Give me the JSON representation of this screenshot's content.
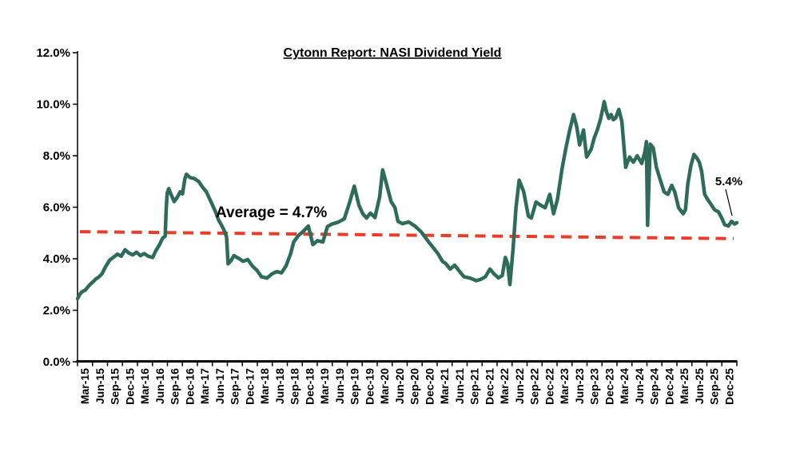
{
  "page": {
    "background": "#ffffff"
  },
  "chart_data": {
    "type": "line",
    "title": "Cytonn Report: NASI Dividend Yield",
    "xlabel": "",
    "ylabel": "",
    "unit": "percent",
    "ylim": [
      0,
      12
    ],
    "y_tick_values": [
      0,
      2,
      4,
      6,
      8,
      10,
      12
    ],
    "y_tick_labels": [
      "0.0%",
      "2.0%",
      "4.0%",
      "6.0%",
      "8.0%",
      "10.0%",
      "12.0%"
    ],
    "x_tick_labels": [
      "Mar-15",
      "Jun-15",
      "Sep-15",
      "Dec-15",
      "Mar-16",
      "Jun-16",
      "Sep-16",
      "Dec-16",
      "Mar-17",
      "Jun-17",
      "Sep-17",
      "Dec-17",
      "Mar-18",
      "Jun-18",
      "Sep-18",
      "Dec-18",
      "Mar-19",
      "Jun-19",
      "Sep-19",
      "Dec-19",
      "Mar-20",
      "Jun-20",
      "Sep-20",
      "Dec-20",
      "Mar-21",
      "Jun-21",
      "Sep-21",
      "Dec-21",
      "Mar-22",
      "Jun-22",
      "Sep-22",
      "Dec-22",
      "Mar-23",
      "Jun-23",
      "Sep-23",
      "Dec-23",
      "Mar-24",
      "Jun-24",
      "Sep-24",
      "Dec-24",
      "Mar-25",
      "Jun-25",
      "Sep-25",
      "Dec-25"
    ],
    "grid": false,
    "legend": null,
    "axis_color": "#000000",
    "text_color": "#000000",
    "series": [
      {
        "name": "NASI Dividend Yield",
        "color": "#2E6B5B",
        "points": [
          [
            0,
            2.45
          ],
          [
            0.15,
            2.62
          ],
          [
            0.3,
            2.72
          ],
          [
            0.5,
            2.78
          ],
          [
            0.7,
            2.92
          ],
          [
            0.85,
            3.02
          ],
          [
            1,
            3.1
          ],
          [
            1.2,
            3.22
          ],
          [
            1.4,
            3.3
          ],
          [
            1.6,
            3.42
          ],
          [
            1.8,
            3.66
          ],
          [
            2.1,
            3.95
          ],
          [
            2.4,
            4.08
          ],
          [
            2.6,
            4.18
          ],
          [
            2.85,
            4.1
          ],
          [
            3.1,
            4.35
          ],
          [
            3.35,
            4.22
          ],
          [
            3.6,
            4.15
          ],
          [
            3.85,
            4.25
          ],
          [
            4.1,
            4.12
          ],
          [
            4.35,
            4.2
          ],
          [
            4.6,
            4.1
          ],
          [
            4.9,
            4.05
          ],
          [
            5.1,
            4.3
          ],
          [
            5.35,
            4.55
          ],
          [
            5.55,
            4.8
          ],
          [
            5.72,
            4.88
          ],
          [
            5.78,
            5.9
          ],
          [
            5.85,
            6.55
          ],
          [
            5.95,
            6.72
          ],
          [
            6.1,
            6.5
          ],
          [
            6.3,
            6.22
          ],
          [
            6.5,
            6.38
          ],
          [
            6.7,
            6.6
          ],
          [
            6.85,
            6.52
          ],
          [
            7,
            7.1
          ],
          [
            7.1,
            7.28
          ],
          [
            7.35,
            7.15
          ],
          [
            7.6,
            7.12
          ],
          [
            7.9,
            7.0
          ],
          [
            8.15,
            6.78
          ],
          [
            8.4,
            6.6
          ],
          [
            8.7,
            6.22
          ],
          [
            9,
            5.82
          ],
          [
            9.2,
            5.5
          ],
          [
            9.4,
            5.3
          ],
          [
            9.6,
            5.05
          ],
          [
            9.72,
            4.84
          ],
          [
            9.82,
            3.8
          ],
          [
            10,
            3.92
          ],
          [
            10.2,
            4.12
          ],
          [
            10.5,
            4.02
          ],
          [
            10.8,
            3.9
          ],
          [
            11.1,
            3.97
          ],
          [
            11.4,
            3.72
          ],
          [
            11.7,
            3.55
          ],
          [
            12,
            3.3
          ],
          [
            12.35,
            3.25
          ],
          [
            12.7,
            3.42
          ],
          [
            13,
            3.5
          ],
          [
            13.3,
            3.45
          ],
          [
            13.6,
            3.72
          ],
          [
            13.9,
            4.2
          ],
          [
            14.1,
            4.65
          ],
          [
            14.4,
            4.9
          ],
          [
            14.75,
            5.08
          ],
          [
            15.05,
            5.27
          ],
          [
            15.35,
            4.55
          ],
          [
            15.65,
            4.7
          ],
          [
            16,
            4.65
          ],
          [
            16.3,
            5.25
          ],
          [
            16.6,
            5.35
          ],
          [
            17,
            5.42
          ],
          [
            17.4,
            5.55
          ],
          [
            17.75,
            6.2
          ],
          [
            18.05,
            6.82
          ],
          [
            18.35,
            6.08
          ],
          [
            18.6,
            5.75
          ],
          [
            18.85,
            5.58
          ],
          [
            19.1,
            5.77
          ],
          [
            19.4,
            5.6
          ],
          [
            19.7,
            6.4
          ],
          [
            19.9,
            7.45
          ],
          [
            20.15,
            6.9
          ],
          [
            20.45,
            6.22
          ],
          [
            20.7,
            5.98
          ],
          [
            20.9,
            5.45
          ],
          [
            21.2,
            5.36
          ],
          [
            21.6,
            5.43
          ],
          [
            22,
            5.27
          ],
          [
            22.4,
            5.05
          ],
          [
            22.65,
            4.85
          ],
          [
            22.9,
            4.65
          ],
          [
            23.2,
            4.43
          ],
          [
            23.5,
            4.2
          ],
          [
            23.8,
            3.9
          ],
          [
            24,
            3.82
          ],
          [
            24.3,
            3.6
          ],
          [
            24.6,
            3.75
          ],
          [
            24.9,
            3.52
          ],
          [
            25.2,
            3.3
          ],
          [
            25.6,
            3.25
          ],
          [
            26,
            3.15
          ],
          [
            26.3,
            3.2
          ],
          [
            26.6,
            3.3
          ],
          [
            26.9,
            3.6
          ],
          [
            27.15,
            3.42
          ],
          [
            27.45,
            3.26
          ],
          [
            27.7,
            3.35
          ],
          [
            27.9,
            4.05
          ],
          [
            28.05,
            3.8
          ],
          [
            28.2,
            3.0
          ],
          [
            28.4,
            4.35
          ],
          [
            28.6,
            6.0
          ],
          [
            28.8,
            7.05
          ],
          [
            29.1,
            6.6
          ],
          [
            29.4,
            5.66
          ],
          [
            29.6,
            5.58
          ],
          [
            29.9,
            6.2
          ],
          [
            30.2,
            6.08
          ],
          [
            30.5,
            5.98
          ],
          [
            30.8,
            6.5
          ],
          [
            31.05,
            5.75
          ],
          [
            31.3,
            6.3
          ],
          [
            31.6,
            7.5
          ],
          [
            31.85,
            8.3
          ],
          [
            32.1,
            9.0
          ],
          [
            32.35,
            9.6
          ],
          [
            32.55,
            9.15
          ],
          [
            32.75,
            8.42
          ],
          [
            33,
            9.0
          ],
          [
            33.2,
            7.95
          ],
          [
            33.5,
            8.25
          ],
          [
            33.7,
            8.7
          ],
          [
            33.9,
            9.0
          ],
          [
            34.1,
            9.4
          ],
          [
            34.25,
            9.8
          ],
          [
            34.35,
            10.1
          ],
          [
            34.5,
            9.7
          ],
          [
            34.65,
            9.45
          ],
          [
            34.8,
            9.6
          ],
          [
            34.95,
            9.4
          ],
          [
            35.1,
            9.47
          ],
          [
            35.3,
            9.8
          ],
          [
            35.5,
            9.33
          ],
          [
            35.75,
            7.55
          ],
          [
            36,
            7.95
          ],
          [
            36.25,
            7.75
          ],
          [
            36.5,
            8.0
          ],
          [
            36.8,
            7.7
          ],
          [
            37,
            8.15
          ],
          [
            37.1,
            8.55
          ],
          [
            37.18,
            5.3
          ],
          [
            37.35,
            8.45
          ],
          [
            37.55,
            8.3
          ],
          [
            37.75,
            7.55
          ],
          [
            38,
            7.07
          ],
          [
            38.25,
            6.6
          ],
          [
            38.5,
            6.5
          ],
          [
            38.75,
            6.85
          ],
          [
            38.95,
            6.6
          ],
          [
            39.2,
            5.98
          ],
          [
            39.5,
            5.75
          ],
          [
            39.65,
            5.9
          ],
          [
            39.8,
            6.9
          ],
          [
            40,
            7.6
          ],
          [
            40.2,
            8.05
          ],
          [
            40.4,
            7.9
          ],
          [
            40.55,
            7.75
          ],
          [
            40.7,
            7.4
          ],
          [
            40.9,
            6.5
          ],
          [
            41.1,
            6.3
          ],
          [
            41.35,
            6.08
          ],
          [
            41.55,
            5.9
          ],
          [
            41.8,
            5.82
          ],
          [
            42,
            5.6
          ],
          [
            42.2,
            5.32
          ],
          [
            42.45,
            5.27
          ],
          [
            42.65,
            5.45
          ],
          [
            42.85,
            5.35
          ],
          [
            43,
            5.4
          ]
        ]
      }
    ],
    "trend_line": {
      "label": "Average = 4.7%",
      "average": "4.7%",
      "color": "#E93C2B",
      "style": "dashed",
      "start_value": 5.05,
      "end_value": 4.78
    },
    "end_annotation": {
      "label": "5.4%",
      "value": 5.4
    }
  }
}
